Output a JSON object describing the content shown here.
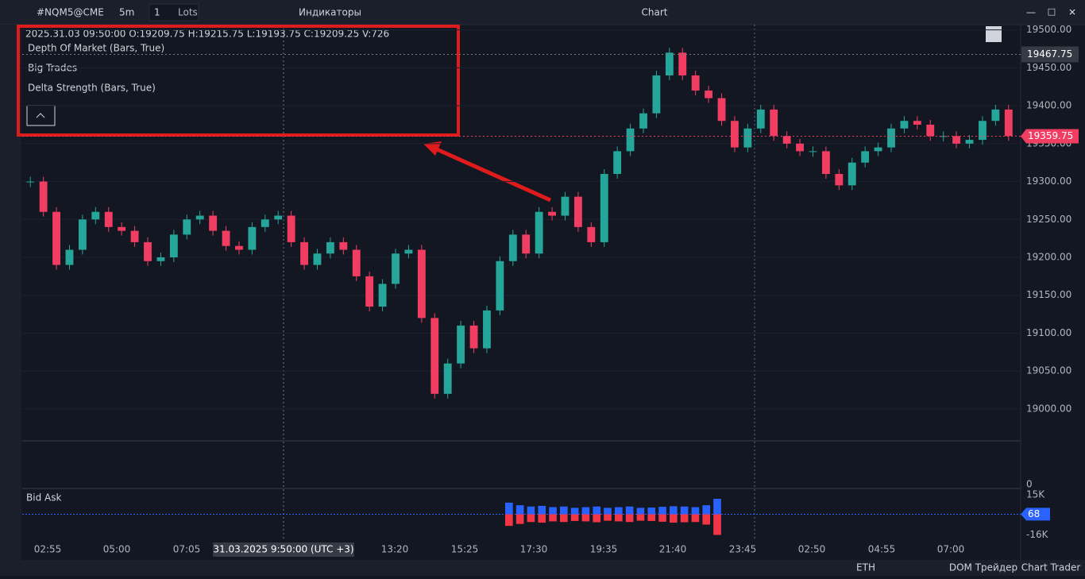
{
  "toolbar": {
    "symbol": "#NQM5@CME",
    "timeframe": "5m",
    "quantity": "1",
    "quantity_unit": "Lots",
    "indicators": "Индикаторы",
    "window_title": "Chart"
  },
  "legend": {
    "ohlc": "2025.31.03 09:50:00 O:19209.75 H:19215.75 L:19193.75 C:19209.25 V:726",
    "items": [
      "Depth Of Market (Bars, True)",
      "Big Trades",
      "Delta Strength (Bars, True)"
    ]
  },
  "chart_data": {
    "type": "candlestick",
    "up_color": "#26a69a",
    "down_color": "#f23d63",
    "closes": [
      19300,
      19260,
      19190,
      19210,
      19250,
      19260,
      19240,
      19235,
      19220,
      19195,
      19200,
      19230,
      19250,
      19255,
      19235,
      19215,
      19210,
      19240,
      19250,
      19255,
      19220,
      19190,
      19205,
      19220,
      19210,
      19175,
      19135,
      19165,
      19205,
      19210,
      19120,
      19020,
      19060,
      19110,
      19080,
      19130,
      19195,
      19230,
      19205,
      19260,
      19255,
      19280,
      19240,
      19220,
      19310,
      19340,
      19370,
      19390,
      19440,
      19470,
      19440,
      19420,
      19410,
      19380,
      19345,
      19370,
      19395,
      19360,
      19350,
      19340,
      19340,
      19310,
      19295,
      19325,
      19340,
      19345,
      19370,
      19380,
      19375,
      19360,
      19360,
      19350,
      19355,
      19380,
      19395,
      19360
    ],
    "ylim": [
      18958,
      19507
    ],
    "yticks": [
      {
        "value": 19000,
        "label": "19000.00"
      },
      {
        "value": 19050,
        "label": "19050.00"
      },
      {
        "value": 19100,
        "label": "19100.00"
      },
      {
        "value": 19150,
        "label": "19150.00"
      },
      {
        "value": 19200,
        "label": "19200.00"
      },
      {
        "value": 19250,
        "label": "19250.00"
      },
      {
        "value": 19300,
        "label": "19300.00"
      },
      {
        "value": 19350,
        "label": "19350.00"
      },
      {
        "value": 19400,
        "label": "19400.00"
      },
      {
        "value": 19450,
        "label": "19450.00"
      },
      {
        "value": 19500,
        "label": "19500.00"
      }
    ],
    "crosshair_price": 19467.75,
    "last_price": 19359.75
  },
  "delta_pane": {
    "ytick": 0
  },
  "bid_ask": {
    "title": "Bid Ask",
    "ylim": [
      -20000,
      20000
    ],
    "yticks": [
      {
        "value": 15000,
        "label": "15K"
      },
      {
        "value": -16000,
        "label": "-16K"
      }
    ],
    "current": 68,
    "ask": [
      9000,
      7000,
      6000,
      6500,
      5500,
      6000,
      5000,
      5500,
      6000,
      5000,
      5500,
      6000,
      5000,
      5200,
      5800,
      6200,
      6000,
      5500,
      7000,
      12000
    ],
    "bid": [
      -9000,
      -7500,
      -6000,
      -6500,
      -5500,
      -6000,
      -5200,
      -5500,
      -6200,
      -5000,
      -5500,
      -6000,
      -5000,
      -5200,
      -5800,
      -6500,
      -6200,
      -6000,
      -8000,
      -16000
    ]
  },
  "time_labels": [
    "02:55",
    "05:00",
    "07:05",
    "31.03.2025 9:50:00 (UTC +3)",
    "13:20",
    "15:25",
    "17:30",
    "19:35",
    "21:40",
    "23:45",
    "02:50",
    "04:55",
    "07:00"
  ],
  "status_bar": {
    "session": "ETH",
    "dom": "DOM Трейдер",
    "chart_trader": "Chart Trader"
  }
}
